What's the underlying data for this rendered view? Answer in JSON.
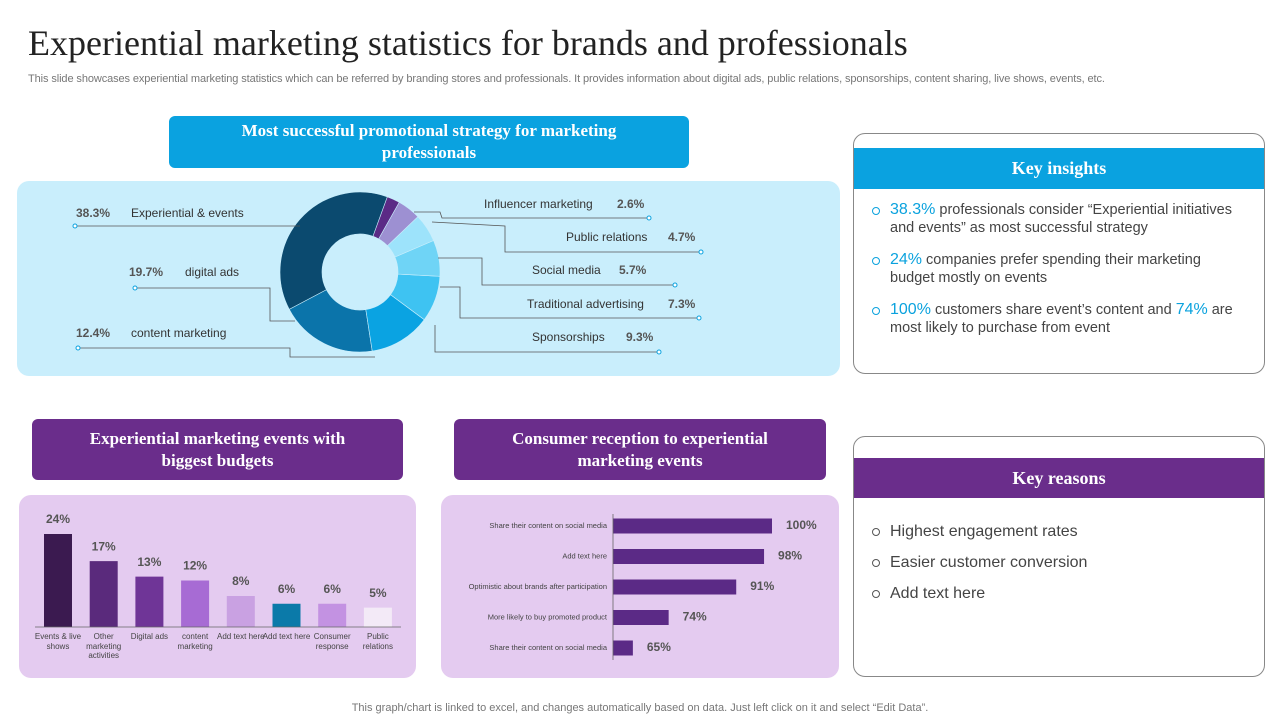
{
  "title": "Experiential marketing statistics for brands and professionals",
  "subtitle": "This slide showcases experiential marketing statistics which can be referred by branding stores and professionals. It provides information about digital ads, public relations, sponsorships, content sharing, live shows, events, etc.",
  "footer": "This graph/chart is linked to excel,  and changes automatically based on data. Just left click on it and select “Edit Data”.",
  "chart_data": [
    {
      "type": "donut",
      "title": "Most successful promotional strategy for marketing professionals",
      "categories": [
        "Experiential & events",
        "digital ads",
        "content marketing",
        "Sponsorships",
        "Traditional advertising",
        "Social media",
        "Public relations",
        "Influencer marketing"
      ],
      "values": [
        38.3,
        19.7,
        12.4,
        9.3,
        7.3,
        5.7,
        4.7,
        2.6
      ],
      "value_labels": [
        "38.3%",
        "19.7%",
        "12.4%",
        "9.3%",
        "7.3%",
        "5.7%",
        "4.7%",
        "2.6%"
      ],
      "colors": [
        "#0b4a6f",
        "#0b74aa",
        "#0aa3e2",
        "#3ec3f2",
        "#6fd4f6",
        "#9de3fb",
        "#9d90d2",
        "#5b2a86"
      ]
    },
    {
      "type": "bar",
      "title": "Experiential marketing events with biggest budgets",
      "categories": [
        "Events & live shows",
        "Other marketing activities",
        "Digital ads",
        "content marketing",
        "Add text here",
        "Add text here",
        "Consumer response",
        "Public relations"
      ],
      "values": [
        24,
        17,
        13,
        12,
        8,
        6,
        6,
        5
      ],
      "value_labels": [
        "24%",
        "17%",
        "13%",
        "12%",
        "8%",
        "6%",
        "6%",
        "5%"
      ],
      "colors": [
        "#3b1a50",
        "#5a2a7c",
        "#6f3597",
        "#a76bd4",
        "#c9a1e2",
        "#0b7aa9",
        "#c392e2",
        "#f3eaf7"
      ],
      "ylim": [
        0,
        24
      ]
    },
    {
      "type": "hbar",
      "title": "Consumer reception to experiential marketing events",
      "categories": [
        "Share their content on social media",
        "Add text here",
        "Optimistic about brands after participation",
        "More likely to buy promoted product",
        "Share their content on social media"
      ],
      "values": [
        100,
        98,
        91,
        74,
        65
      ],
      "value_labels": [
        "100%",
        "98%",
        "91%",
        "74%",
        "65%"
      ],
      "color": "#5b2a86",
      "xlim": [
        60,
        100
      ]
    }
  ],
  "insights": {
    "title": "Key insights",
    "items": [
      [
        {
          "text": "38.3%",
          "highlight": true
        },
        {
          "text": " professionals consider “Experiential initiatives and events” as most successful strategy"
        }
      ],
      [
        {
          "text": "24%",
          "highlight": true
        },
        {
          "text": " companies prefer spending their marketing budget mostly on events"
        }
      ],
      [
        {
          "text": "100%",
          "highlight": true
        },
        {
          "text": " customers share event’s content and "
        },
        {
          "text": "74%",
          "highlight": true
        },
        {
          "text": " are most likely to purchase from event"
        }
      ]
    ]
  },
  "reasons": {
    "title": "Key reasons",
    "items": [
      "Highest engagement rates",
      "Easier customer conversion",
      "Add text here"
    ]
  }
}
